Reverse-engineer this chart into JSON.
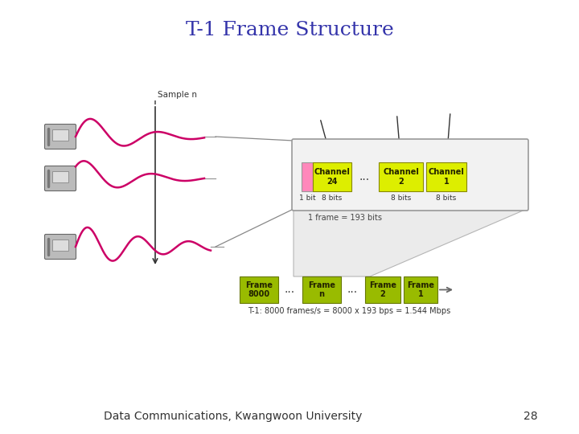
{
  "title": "T-1 Frame Structure",
  "title_color": "#3333aa",
  "title_fontsize": 18,
  "bg_color": "#ffffff",
  "footer_text": "Data Communications, Kwangwoon University",
  "footer_number": "28",
  "footer_fontsize": 10,
  "wave_color": "#cc0066",
  "wave_linewidth": 1.8,
  "channel_box_color": "#ddee00",
  "channel_pink_color": "#ff88bb",
  "frame_box_color": "#99bb00",
  "channel_box_border": "#888800",
  "frame_label_1_bit": "1 bit",
  "frame_label_8bits_1": "8 bits",
  "frame_label_8bits_2": "8 bits",
  "frame_label_8bits_3": "8 bits",
  "channel24_text": "Channel\n24",
  "channel2_text": "Channel\n2",
  "channel1_text": "Channel\n1",
  "frame8000_text": "Frame\n8000",
  "framen_text": "Frame\nn",
  "frame2_text": "Frame\n2",
  "frame1_text": "Frame\n1",
  "one_frame_text": "1 frame = 193 bits",
  "t1_formula": "T-1: 8000 frames/s = 8000 x 193 bps = 1.544 Mbps",
  "samplen_text": "Sample n",
  "dashed_line_color": "#555555",
  "box_text_color": "#222200",
  "frame_box_text_color": "#222200",
  "arrow_color": "#333333",
  "line_color": "#555555",
  "phone_color": "#aaaaaa",
  "phone_border": "#666666"
}
